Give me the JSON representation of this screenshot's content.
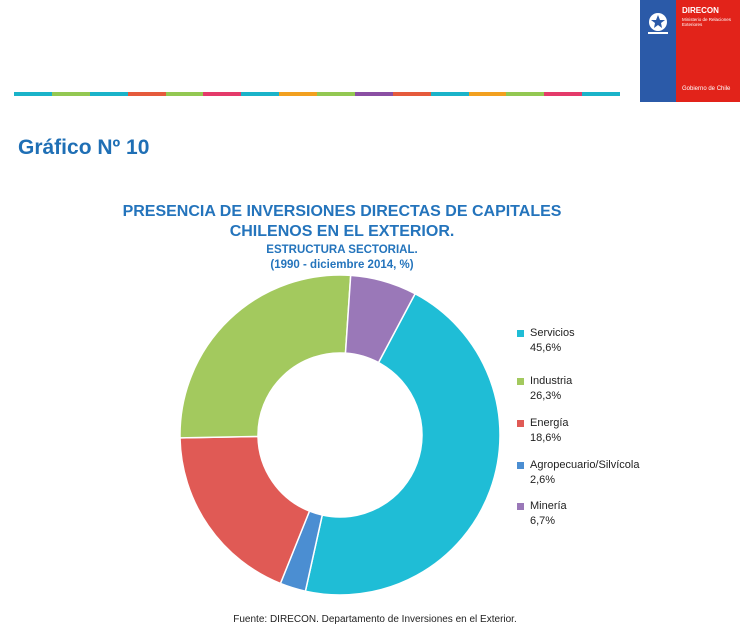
{
  "header": {
    "stripe_colors": [
      "#1ab3c9",
      "#93c852",
      "#1ab3c9",
      "#e55a3c",
      "#93c852",
      "#e43a6a",
      "#1ab3c9",
      "#f2a01f",
      "#93c852",
      "#8a4fa3",
      "#e55a3c",
      "#1ab3c9",
      "#f2a01f",
      "#93c852",
      "#e43a6a",
      "#1ab3c9"
    ]
  },
  "logo": {
    "brand": "DIRECON",
    "subline": "Ministerio de Relaciones Exteriores",
    "footer": "Gobierno de Chile",
    "blue": "#2b5aa8",
    "red": "#e2231a"
  },
  "heading": "Gráfico Nº 10",
  "chart_data": {
    "type": "pie",
    "title": "PRESENCIA DE INVERSIONES DIRECTAS DE CAPITALES CHILENOS EN  EL EXTERIOR.",
    "subtitle_line1": "ESTRUCTURA SECTORIAL.",
    "subtitle_line2": "(1990 - diciembre 2014, %)",
    "donut": true,
    "legend_position": "right",
    "slices": [
      {
        "label": "Servicios",
        "value": 45.6,
        "display": "45,6%",
        "color": "#1fbdd6"
      },
      {
        "label": "Agropecuario/Silvícola",
        "value": 2.6,
        "display": "2,6%",
        "color": "#4b8ed2"
      },
      {
        "label": "Energía",
        "value": 18.6,
        "display": "18,6%",
        "color": "#e05a55"
      },
      {
        "label": "Industria",
        "value": 26.3,
        "display": "26,3%",
        "color": "#a3c95e"
      },
      {
        "label": "Minería",
        "value": 6.7,
        "display": "6,7%",
        "color": "#9a78b8"
      }
    ],
    "legend_order": [
      "Servicios",
      "Industria",
      "Energía",
      "Agropecuario/Silvícola",
      "Minería"
    ]
  },
  "legend_labels": {
    "servicios": "Servicios",
    "servicios_val": "45,6%",
    "industria": "Industria",
    "industria_val": "26,3%",
    "energia": " Energía",
    "energia_val": "18,6%",
    "agro": "Agropecuario/Silvícola",
    "agro_val": "2,6%",
    "mineria": "Minería",
    "mineria_val": "6,7%"
  },
  "source": "Fuente: DIRECON. Departamento de Inversiones en el Exterior."
}
